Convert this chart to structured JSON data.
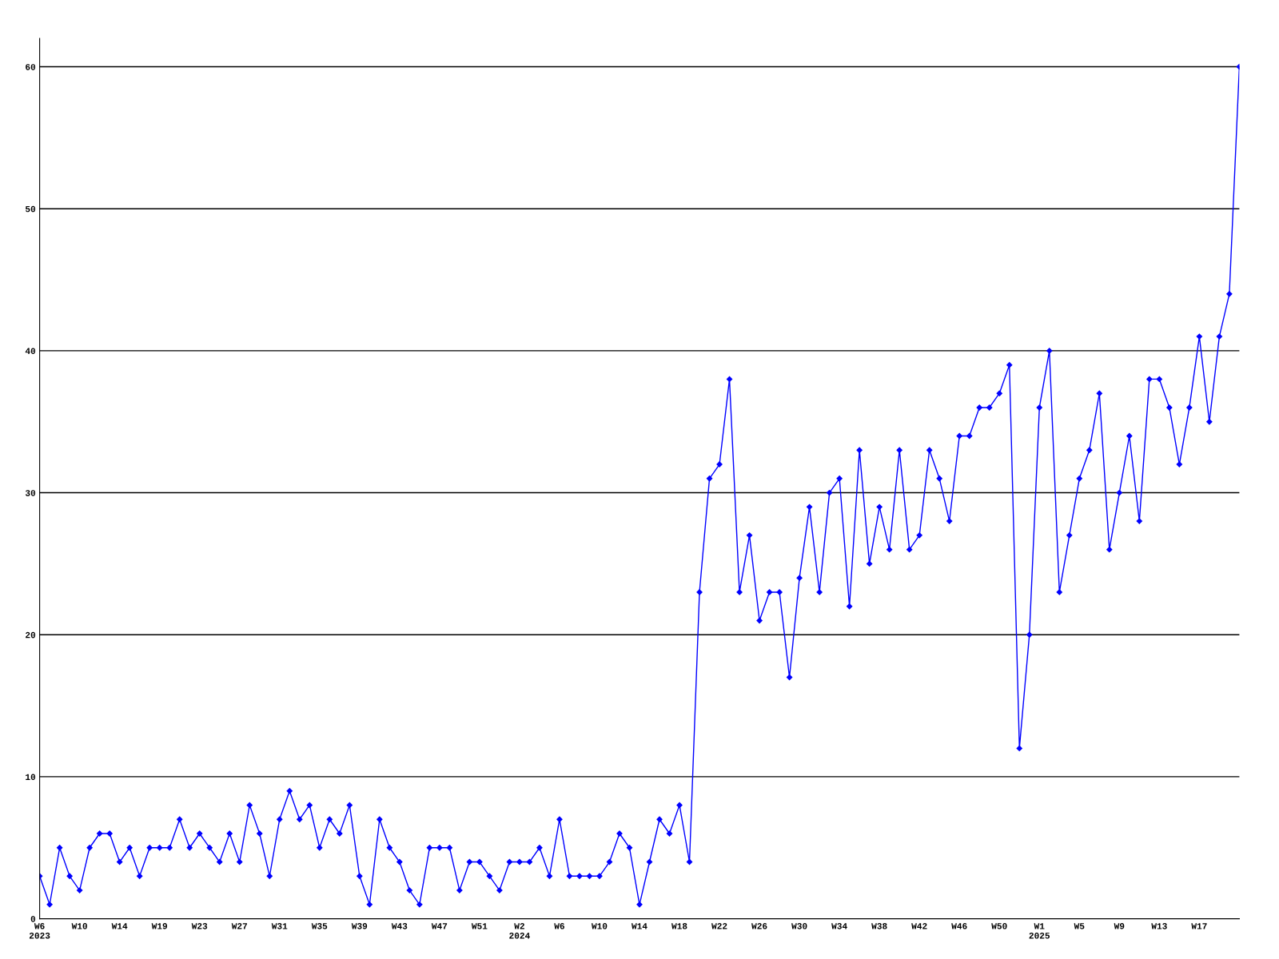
{
  "chart_data": {
    "type": "line",
    "categories": [
      "W6\n2023",
      null,
      null,
      null,
      "W10",
      null,
      null,
      null,
      "W14",
      null,
      null,
      null,
      "W19",
      null,
      null,
      null,
      "W23",
      null,
      null,
      null,
      "W27",
      null,
      null,
      null,
      "W31",
      null,
      null,
      null,
      "W35",
      null,
      null,
      null,
      "W39",
      null,
      null,
      null,
      "W43",
      null,
      null,
      null,
      "W47",
      null,
      null,
      null,
      "W51",
      null,
      null,
      null,
      "W2\n2024",
      null,
      null,
      null,
      "W6",
      null,
      null,
      null,
      "W10",
      null,
      null,
      null,
      "W14",
      null,
      null,
      null,
      "W18",
      null,
      null,
      null,
      "W22",
      null,
      null,
      null,
      "W26",
      null,
      null,
      null,
      "W30",
      null,
      null,
      null,
      "W34",
      null,
      null,
      null,
      "W38",
      null,
      null,
      null,
      "W42",
      null,
      null,
      null,
      "W46",
      null,
      null,
      null,
      "W50",
      null,
      null,
      null,
      "W1\n2025",
      null,
      null,
      null,
      "W5",
      null,
      null,
      null,
      "W9",
      null,
      null,
      null,
      "W13",
      null,
      null,
      null,
      "W17",
      null,
      null,
      null,
      null
    ],
    "series": [
      {
        "color": "#0000ff",
        "values": [
          3,
          1,
          5,
          3,
          2,
          5,
          6,
          6,
          4,
          5,
          3,
          5,
          5,
          5,
          7,
          5,
          6,
          5,
          4,
          6,
          4,
          8,
          6,
          3,
          7,
          9,
          7,
          8,
          5,
          7,
          6,
          8,
          3,
          1,
          7,
          5,
          4,
          2,
          1,
          5,
          5,
          5,
          2,
          4,
          4,
          3,
          2,
          4,
          4,
          4,
          5,
          3,
          7,
          3,
          3,
          3,
          3,
          4,
          6,
          5,
          1,
          4,
          7,
          6,
          8,
          4,
          23,
          31,
          32,
          38,
          23,
          27,
          21,
          23,
          23,
          17,
          24,
          29,
          23,
          30,
          31,
          22,
          33,
          25,
          29,
          26,
          33,
          26,
          27,
          33,
          31,
          28,
          34,
          34,
          36,
          36,
          37,
          39,
          12,
          20,
          36,
          40,
          23,
          27,
          31,
          33,
          37,
          26,
          30,
          34,
          28,
          38,
          38,
          36,
          32,
          36,
          41,
          35,
          41,
          44,
          60
        ]
      }
    ],
    "ylim": [
      0,
      62
    ],
    "yticks": [
      0,
      10,
      20,
      30,
      40,
      50,
      60
    ],
    "grid": "y",
    "marker": "diamond",
    "line_style": "solid",
    "legend": false
  }
}
